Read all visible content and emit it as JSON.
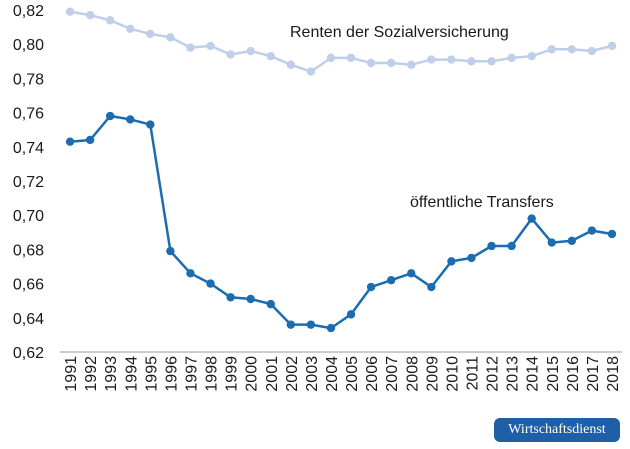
{
  "chart_data": {
    "type": "line",
    "x": [
      "1991",
      "1992",
      "1993",
      "1994",
      "1995",
      "1996",
      "1997",
      "1998",
      "1999",
      "2000",
      "2001",
      "2002",
      "2003",
      "2004",
      "2005",
      "2006",
      "2007",
      "2008",
      "2009",
      "2010",
      "2011",
      "2012",
      "2013",
      "2014",
      "2015",
      "2016",
      "2017",
      "2018"
    ],
    "ylim": [
      0.62,
      0.82
    ],
    "yticks": [
      "0,62",
      "0,64",
      "0,66",
      "0,68",
      "0,70",
      "0,72",
      "0,74",
      "0,76",
      "0,78",
      "0,80",
      "0,82"
    ],
    "grid": false,
    "series": [
      {
        "name": "Renten der Sozialversicherung",
        "color": "#bfcfea",
        "values": [
          0.819,
          0.817,
          0.814,
          0.809,
          0.806,
          0.804,
          0.798,
          0.799,
          0.794,
          0.796,
          0.793,
          0.788,
          0.784,
          0.792,
          0.792,
          0.789,
          0.789,
          0.788,
          0.791,
          0.791,
          0.79,
          0.79,
          0.792,
          0.793,
          0.797,
          0.797,
          0.796,
          0.799
        ]
      },
      {
        "name": "öffentliche Transfers",
        "color": "#1b6cb0",
        "values": [
          0.743,
          0.744,
          0.758,
          0.756,
          0.753,
          0.679,
          0.666,
          0.66,
          0.652,
          0.651,
          0.648,
          0.636,
          0.636,
          0.634,
          0.642,
          0.658,
          0.662,
          0.666,
          0.658,
          0.673,
          0.675,
          0.682,
          0.682,
          0.698,
          0.684,
          0.685,
          0.691,
          0.689
        ]
      }
    ]
  },
  "badge": {
    "text": "Wirtschaftsdienst"
  }
}
